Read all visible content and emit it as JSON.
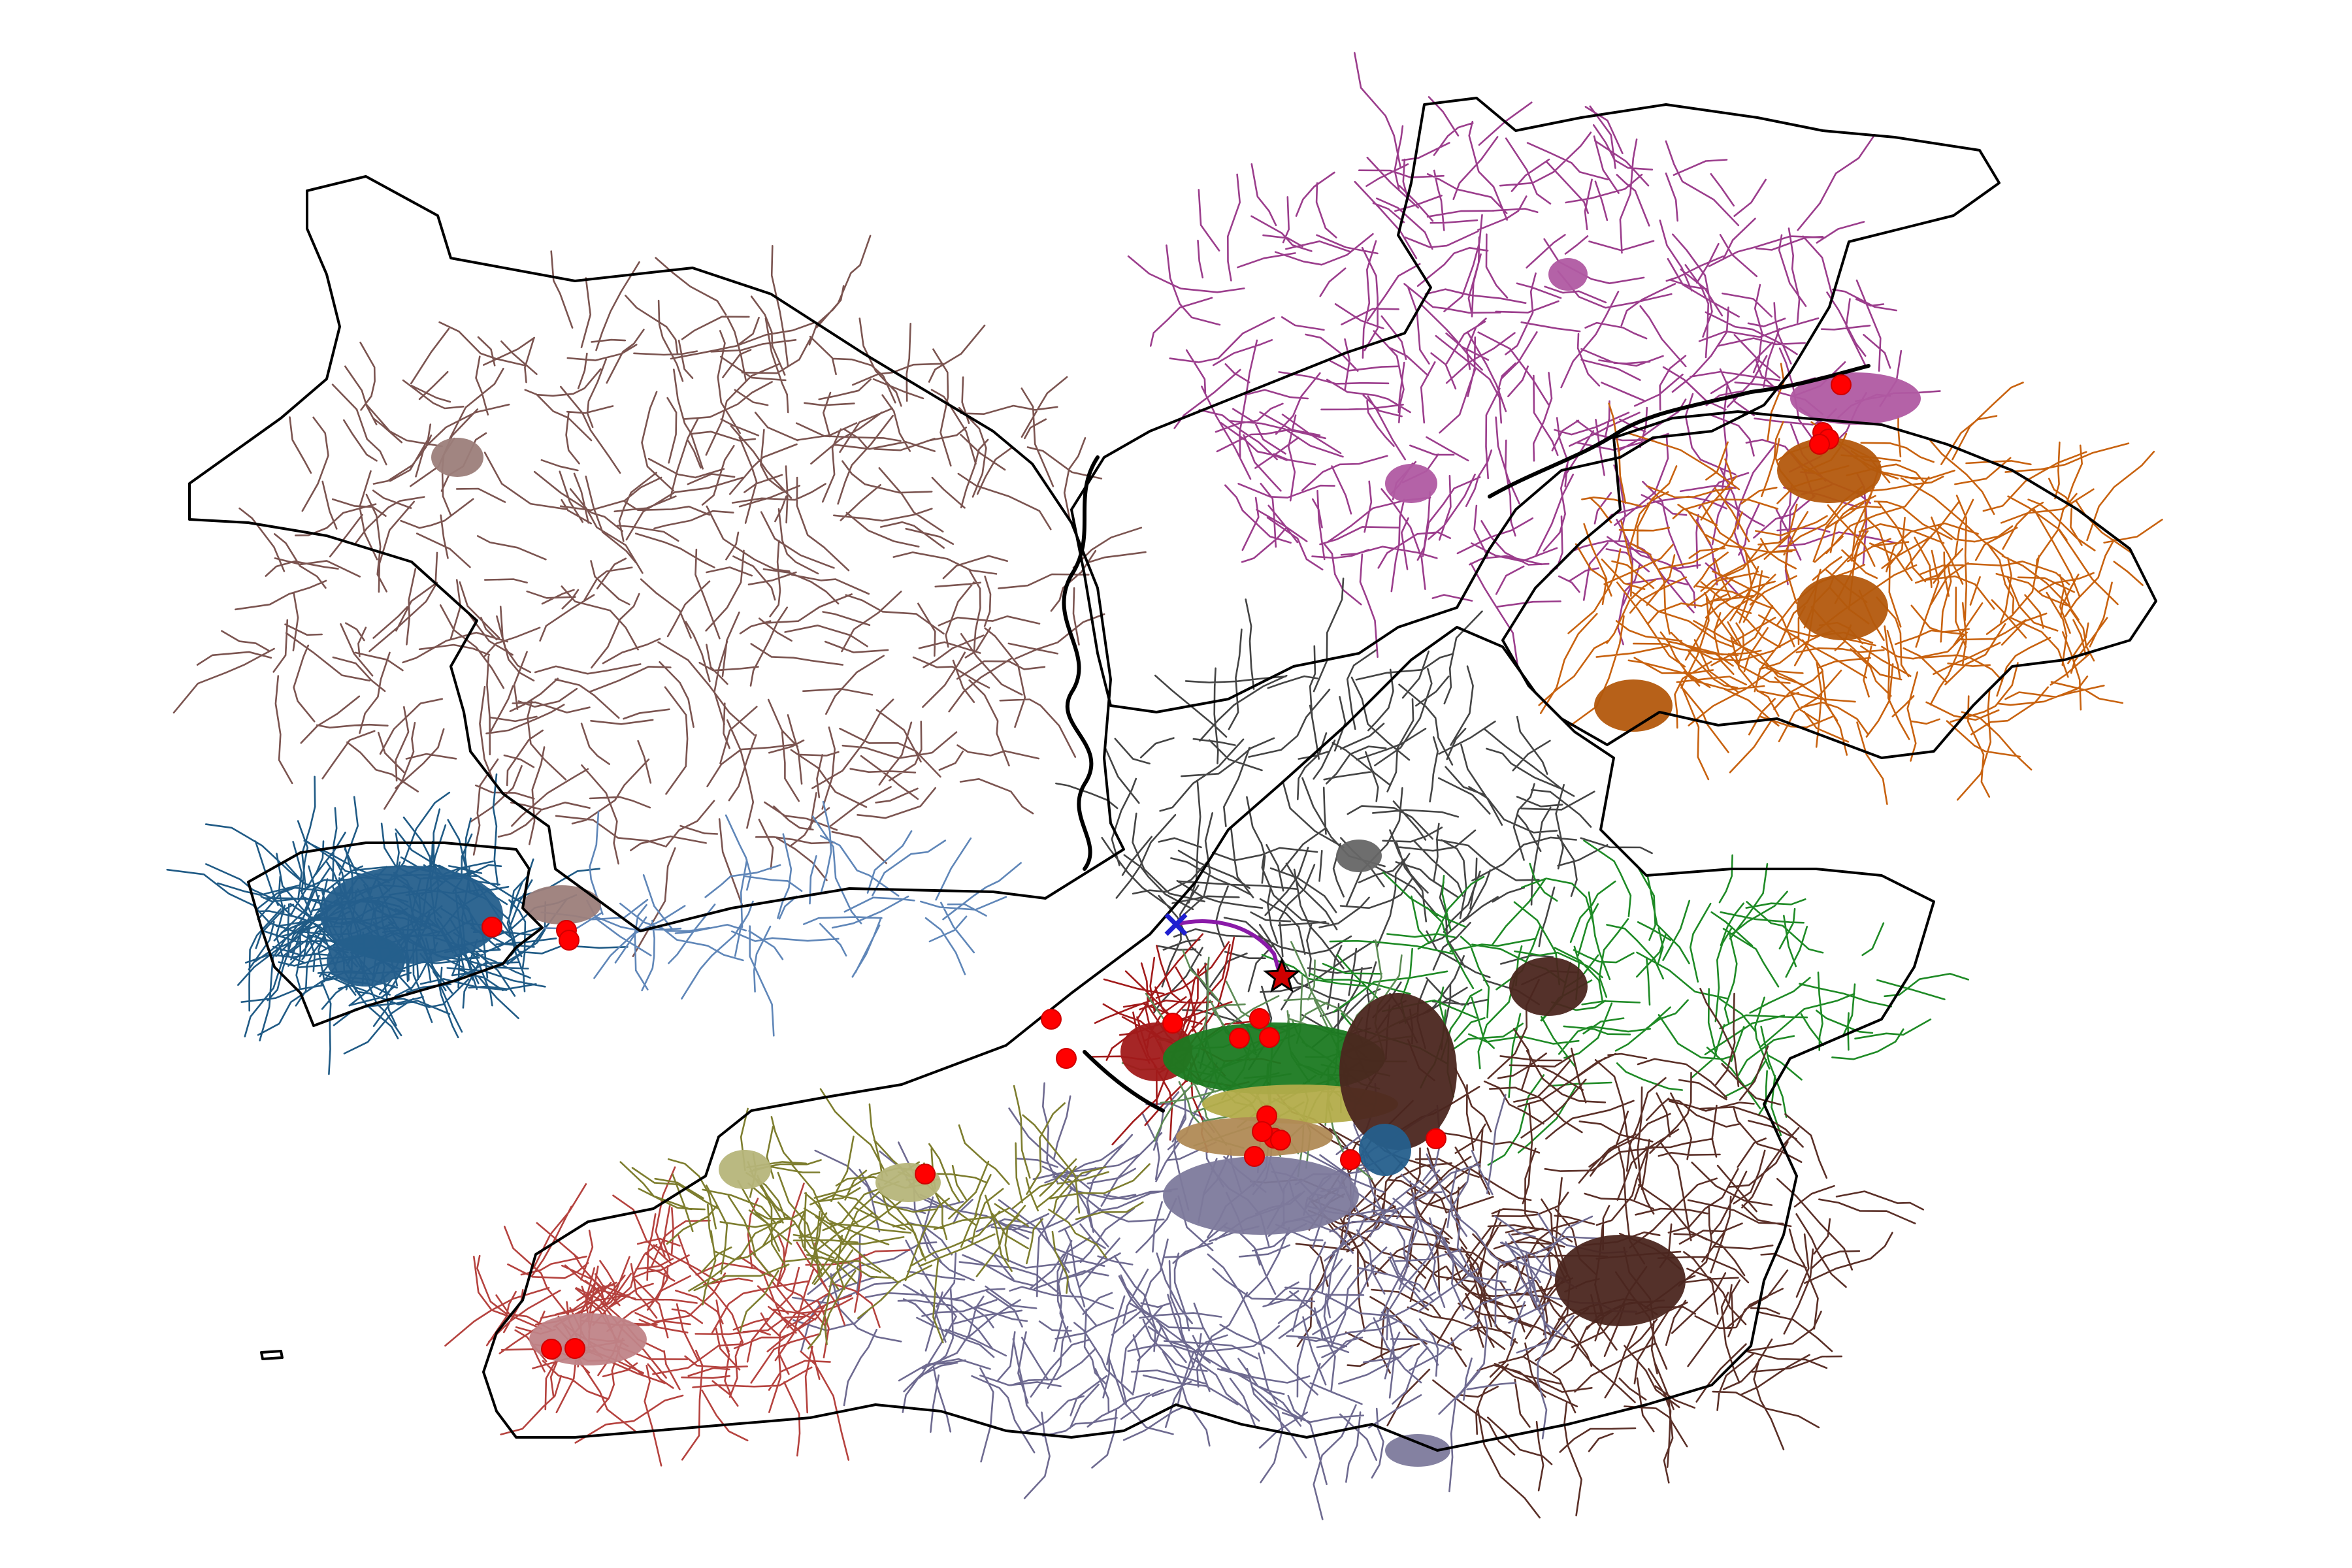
{
  "map": {
    "background": "#ffffff",
    "outline_color": "#000000",
    "legend": "none",
    "axes": "hidden",
    "regions": [
      {
        "id": "northwest",
        "color": "#7b5450",
        "urban_color": "#9c7e7a"
      },
      {
        "id": "west-city",
        "color": "#1f5a85",
        "urban_color": "#255f8c"
      },
      {
        "id": "west-coast",
        "color": "#5f86b8",
        "urban_color": "#8aa6c8"
      },
      {
        "id": "north",
        "color": "#9b3d8c",
        "urban_color": "#b05aa2"
      },
      {
        "id": "northeast",
        "color": "#c8620f",
        "urban_color": "#b3580d"
      },
      {
        "id": "central-north",
        "color": "#444444",
        "urban_color": "#666666"
      },
      {
        "id": "east",
        "color": "#1e8a25",
        "urban_color": "#1b7a21"
      },
      {
        "id": "southeast",
        "color": "#5a2f27",
        "urban_color": "#4b261f"
      },
      {
        "id": "south",
        "color": "#6e6a90",
        "urban_color": "#7d7a9c"
      },
      {
        "id": "southwest",
        "color": "#b5423e",
        "urban_color": "#c08488"
      },
      {
        "id": "olive",
        "color": "#7d7d2e",
        "urban_color": "#b6b57a"
      },
      {
        "id": "tan",
        "color": "#b07a40",
        "urban_color": "#b08a55"
      },
      {
        "id": "yellow-green",
        "color": "#a7a234",
        "urban_color": "#b3ac4a"
      },
      {
        "id": "red-central",
        "color": "#a11a1a",
        "urban_color": "#a11a1a"
      },
      {
        "id": "sea-green",
        "color": "#5d8b55",
        "urban_color": "#8cb07a"
      }
    ],
    "route": {
      "color": "#8a1aa8"
    },
    "start_marker": {
      "icon": "cross-icon",
      "color": "#1f1fd0"
    },
    "end_marker": {
      "icon": "star-icon",
      "color": "#d00000"
    },
    "point_markers": {
      "icon": "dot-icon",
      "color": "#ff0000",
      "count": 27
    }
  }
}
